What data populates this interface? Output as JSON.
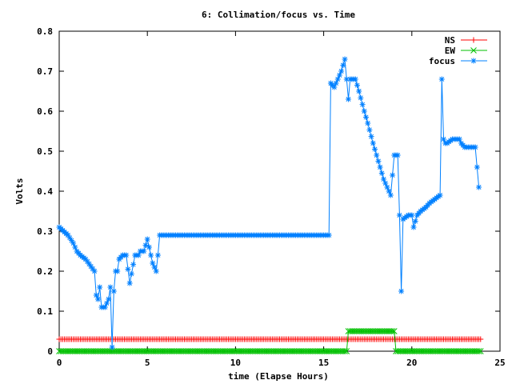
{
  "chart_data": {
    "type": "line",
    "title": "6: Collimation/focus vs. Time",
    "xlabel": "time (Elapse Hours)",
    "ylabel": "Volts",
    "xlim": [
      0,
      25
    ],
    "ylim": [
      0,
      0.8
    ],
    "xticks": [
      0,
      5,
      10,
      15,
      20,
      25
    ],
    "yticks": [
      0,
      0.1,
      0.2,
      0.3,
      0.4,
      0.5,
      0.6,
      0.7,
      0.8
    ],
    "xtick_labels": [
      "0",
      "5",
      "10",
      "15",
      "20",
      "25"
    ],
    "ytick_labels": [
      "0",
      "0.1",
      "0.2",
      "0.3",
      "0.4",
      "0.5",
      "0.6",
      "0.7",
      "0.8"
    ],
    "grid": false,
    "legend_position": "top-right",
    "series": [
      {
        "name": "NS",
        "color": "#ff0000",
        "marker": "plus",
        "x": [
          0,
          23.9
        ],
        "y": [
          0.03,
          0.03
        ]
      },
      {
        "name": "EW",
        "color": "#00c000",
        "marker": "cross",
        "x": [
          0,
          16.3,
          16.4,
          19.0,
          19.1,
          23.9
        ],
        "y": [
          0.0,
          0.0,
          0.05,
          0.05,
          0.0,
          0.0
        ]
      },
      {
        "name": "focus",
        "color": "#0080ff",
        "marker": "star",
        "x": [
          0,
          0.5,
          0.8,
          1.0,
          1.2,
          1.5,
          2.0,
          2.1,
          2.2,
          2.3,
          2.4,
          2.6,
          2.8,
          2.9,
          3.0,
          3.1,
          3.2,
          3.3,
          3.4,
          3.6,
          3.7,
          3.8,
          4.0,
          4.3,
          4.4,
          4.5,
          4.6,
          4.8,
          5.0,
          5.2,
          5.3,
          5.5,
          5.6,
          5.7,
          5.8,
          6.0,
          8.0,
          10.0,
          12.0,
          14.0,
          15.0,
          15.3,
          15.4,
          15.6,
          15.8,
          16.0,
          16.2,
          16.4,
          16.5,
          16.8,
          17.0,
          17.3,
          17.5,
          17.8,
          18.0,
          18.2,
          18.4,
          18.6,
          18.8,
          19.0,
          19.2,
          19.3,
          19.4,
          19.5,
          19.8,
          20.0,
          20.1,
          20.3,
          20.5,
          20.8,
          21.0,
          21.3,
          21.6,
          21.7,
          21.8,
          21.9,
          22.0,
          22.3,
          22.5,
          22.7,
          22.8,
          23.0,
          23.2,
          23.4,
          23.6,
          23.8
        ],
        "y": [
          0.31,
          0.29,
          0.27,
          0.25,
          0.24,
          0.23,
          0.2,
          0.14,
          0.13,
          0.16,
          0.11,
          0.11,
          0.13,
          0.16,
          0.01,
          0.15,
          0.2,
          0.2,
          0.23,
          0.24,
          0.24,
          0.24,
          0.17,
          0.24,
          0.24,
          0.24,
          0.25,
          0.25,
          0.28,
          0.24,
          0.22,
          0.2,
          0.24,
          0.29,
          0.29,
          0.29,
          0.29,
          0.29,
          0.29,
          0.29,
          0.29,
          0.29,
          0.67,
          0.66,
          0.68,
          0.7,
          0.73,
          0.63,
          0.68,
          0.68,
          0.65,
          0.6,
          0.57,
          0.52,
          0.49,
          0.46,
          0.43,
          0.41,
          0.39,
          0.49,
          0.49,
          0.34,
          0.15,
          0.33,
          0.34,
          0.34,
          0.31,
          0.34,
          0.35,
          0.36,
          0.37,
          0.38,
          0.39,
          0.68,
          0.53,
          0.52,
          0.52,
          0.53,
          0.53,
          0.53,
          0.52,
          0.51,
          0.51,
          0.51,
          0.51,
          0.41
        ]
      }
    ]
  }
}
